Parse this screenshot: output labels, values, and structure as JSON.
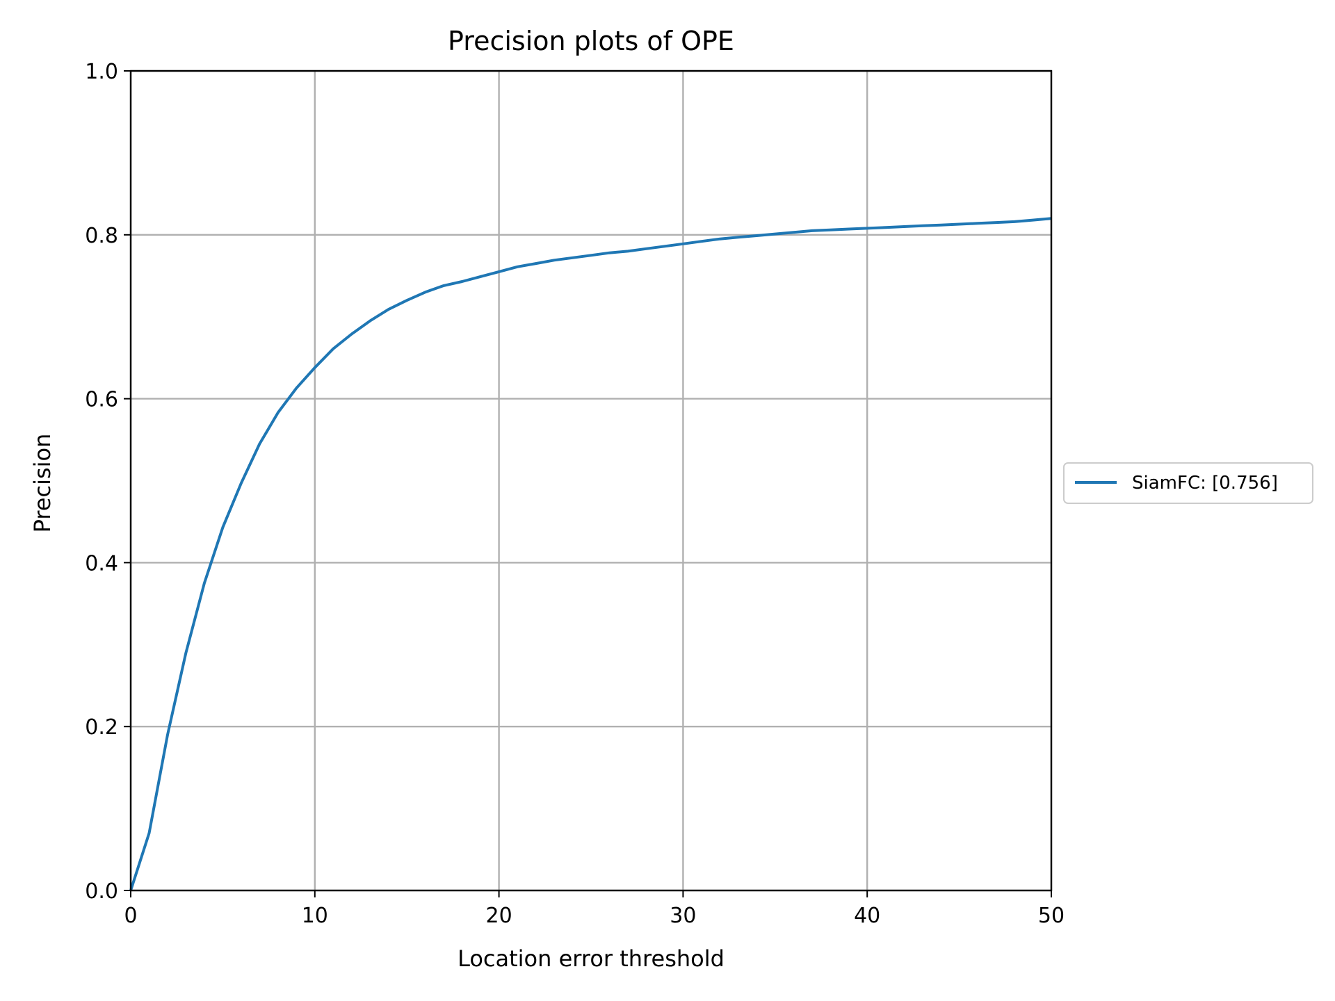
{
  "chart_data": {
    "type": "line",
    "title": "Precision plots of OPE",
    "xlabel": "Location error threshold",
    "ylabel": "Precision",
    "xlim": [
      0,
      50
    ],
    "ylim": [
      0,
      1
    ],
    "xticks": [
      0,
      10,
      20,
      30,
      40,
      50
    ],
    "yticks": [
      0.0,
      0.2,
      0.4,
      0.6,
      0.8,
      1.0
    ],
    "xtick_labels": [
      "0",
      "10",
      "20",
      "30",
      "40",
      "50"
    ],
    "ytick_labels": [
      "0.0",
      "0.2",
      "0.4",
      "0.6",
      "0.8",
      "1.0"
    ],
    "grid": true,
    "legend_position": "outside-right",
    "series": [
      {
        "name": "SiamFC: [0.756]",
        "color": "#1f77b4",
        "x": [
          0,
          1,
          2,
          3,
          4,
          5,
          6,
          7,
          8,
          9,
          10,
          11,
          12,
          13,
          14,
          15,
          16,
          17,
          18,
          19,
          20,
          21,
          22,
          23,
          24,
          25,
          26,
          27,
          28,
          29,
          30,
          31,
          32,
          33,
          34,
          35,
          36,
          37,
          38,
          39,
          40,
          41,
          42,
          43,
          44,
          45,
          46,
          47,
          48,
          49,
          50
        ],
        "y": [
          0.0,
          0.07,
          0.19,
          0.29,
          0.375,
          0.443,
          0.497,
          0.545,
          0.583,
          0.613,
          0.638,
          0.661,
          0.679,
          0.695,
          0.709,
          0.72,
          0.73,
          0.738,
          0.743,
          0.749,
          0.755,
          0.761,
          0.765,
          0.769,
          0.772,
          0.775,
          0.778,
          0.78,
          0.783,
          0.786,
          0.789,
          0.792,
          0.795,
          0.797,
          0.799,
          0.801,
          0.803,
          0.805,
          0.806,
          0.807,
          0.808,
          0.809,
          0.81,
          0.811,
          0.812,
          0.813,
          0.814,
          0.815,
          0.816,
          0.818,
          0.82
        ]
      }
    ]
  }
}
